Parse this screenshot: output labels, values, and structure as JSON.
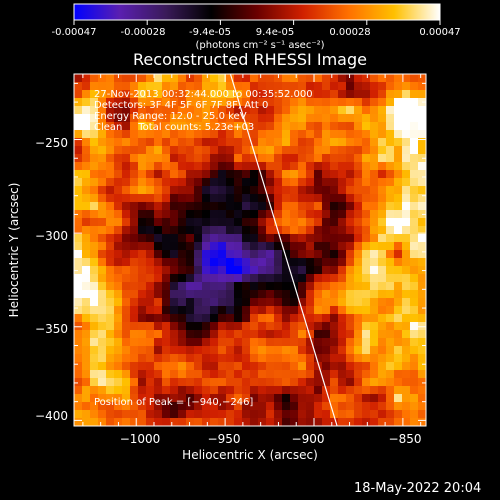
{
  "colorbar": {
    "ticks": [
      "-0.00047",
      "-0.00028",
      "-9.4e-05",
      "9.4e-05",
      "0.00028",
      "0.00047"
    ],
    "unit_label": "(photons cm⁻² s⁻¹ asec⁻²)",
    "min": -0.00047,
    "max": 0.00047,
    "colormap": [
      "#0000ff",
      "#5a1fb0",
      "#3a1a5a",
      "#000000",
      "#6a0000",
      "#d02000",
      "#ff7000",
      "#ffc000",
      "#ffffff"
    ]
  },
  "chart_data": {
    "type": "heatmap",
    "title": "Reconstructed RHESSI Image",
    "xlabel": "Heliocentric X (arcsec)",
    "ylabel": "Heliocentric Y (arcsec)",
    "xlim": [
      -1035,
      -837
    ],
    "ylim": [
      -403,
      -215
    ],
    "x_ticks": [
      -1000,
      -950,
      -900,
      -850
    ],
    "y_ticks": [
      -250,
      -300,
      -350,
      -400
    ],
    "x_tick_labels": [
      "−1000",
      "−950",
      "−900",
      "−850"
    ],
    "y_tick_labels": [
      "−250",
      "−300",
      "−350",
      "−400"
    ],
    "annotations": [
      "27-Nov-2013 00:32:44.000 to 00:35:52.000",
      "Detectors: 3F 4F 5F 6F 7F 8F, Att 0",
      "Energy Range: 12.0 - 25.0 keV",
      "Clean     Total counts: 5.23e+03"
    ],
    "peak_label": "Position of Peak = [−940,−246]",
    "peak": [
      -940,
      -246
    ],
    "limb_line": [
      [
        -947,
        -215
      ],
      [
        -887,
        -403
      ]
    ]
  },
  "footer": {
    "date": "18-May-2022 20:04"
  }
}
